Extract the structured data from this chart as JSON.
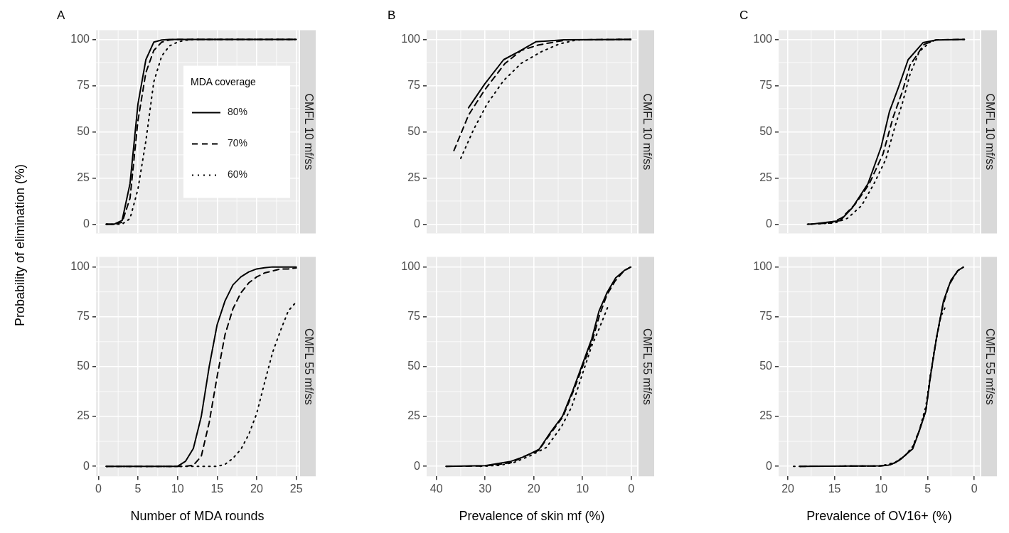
{
  "chart_data": [
    {
      "type": "line",
      "title": "A",
      "subtitle": "CMFL 10 mf/ss",
      "ylabel": "Probability of elimination (%)",
      "legend": "right",
      "legend_title": "MDA coverage",
      "grid": true,
      "tick_labels": "y",
      "xlim": [
        -0.3,
        25.3
      ],
      "xticks": [
        0,
        5,
        10,
        15,
        20,
        25
      ],
      "ylim": [
        -5,
        105
      ],
      "yticks": [
        0,
        25,
        50,
        75,
        100
      ],
      "series": [
        {
          "name": "80%",
          "color": "#000000",
          "line_style": "solid",
          "x": [
            1,
            2,
            3,
            4,
            5,
            6,
            7,
            8,
            9,
            10,
            11,
            12,
            13,
            14,
            15,
            16,
            17,
            18,
            19,
            20,
            21,
            22,
            23,
            24,
            25
          ],
          "values": [
            0,
            0,
            2,
            22,
            65,
            89,
            98.5,
            99.7,
            100,
            100,
            100,
            100,
            100,
            100,
            100,
            100,
            100,
            100,
            100,
            100,
            100,
            100,
            100,
            100,
            100
          ]
        },
        {
          "name": "70%",
          "color": "#000000",
          "line_style": "dashed",
          "x": [
            1,
            2,
            3,
            4,
            5,
            6,
            7,
            8,
            9,
            10,
            11,
            12,
            13,
            14,
            15,
            16,
            17,
            18,
            19,
            20,
            21,
            22,
            23,
            24,
            25
          ],
          "values": [
            0,
            0,
            1,
            14,
            56,
            82,
            94,
            98.5,
            99.7,
            100,
            100,
            100,
            100,
            100,
            100,
            100,
            100,
            100,
            100,
            100,
            100,
            100,
            100,
            100,
            100
          ]
        },
        {
          "name": "60%",
          "color": "#000000",
          "line_style": "dotted",
          "x": [
            1,
            2,
            3,
            4,
            5,
            6,
            7,
            8,
            9,
            10,
            11,
            12,
            13,
            14,
            15,
            16,
            17,
            18,
            19,
            20,
            21,
            22,
            23,
            24,
            25
          ],
          "values": [
            0,
            0,
            0,
            3,
            19,
            45,
            77,
            91,
            96.5,
            98.5,
            99.5,
            100,
            100,
            100,
            100,
            100,
            100,
            100,
            100,
            100,
            100,
            100,
            100,
            100,
            100
          ]
        }
      ]
    },
    {
      "type": "line",
      "title": "B",
      "subtitle": "CMFL 10 mf/ss",
      "grid": true,
      "tick_labels": "y",
      "xlim": [
        42,
        -1.2
      ],
      "xticks": [
        40,
        30,
        20,
        10,
        0
      ],
      "ylim": [
        -5,
        105
      ],
      "yticks": [
        0,
        25,
        50,
        75,
        100
      ],
      "series": [
        {
          "color": "#000000",
          "line_style": "solid",
          "x": [
            33.4,
            30.1,
            26.2,
            23.1,
            19.6,
            13.8,
            0.1
          ],
          "values": [
            63,
            75.8,
            89,
            93.4,
            98.7,
            99.8,
            100
          ]
        },
        {
          "color": "#000000",
          "line_style": "dashed",
          "x": [
            36.4,
            33.4,
            30.1,
            25.9,
            22.6,
            19,
            13.3,
            0.1
          ],
          "values": [
            39.8,
            59,
            72.6,
            87,
            94,
            97,
            99.7,
            100
          ]
        },
        {
          "color": "#000000",
          "line_style": "dotted",
          "x": [
            35,
            32.4,
            29.6,
            26.2,
            22.6,
            18.4,
            14.8,
            11.2,
            0.1
          ],
          "values": [
            35.6,
            51,
            65,
            77.7,
            87,
            93.4,
            97.5,
            99.7,
            100
          ]
        }
      ]
    },
    {
      "type": "line",
      "title": "C",
      "subtitle": "CMFL 10 mf/ss",
      "grid": true,
      "tick_labels": "y",
      "xlim": [
        21,
        -0.6
      ],
      "xticks": [
        20,
        15,
        10,
        5,
        0
      ],
      "ylim": [
        -5,
        105
      ],
      "yticks": [
        0,
        25,
        50,
        75,
        100
      ],
      "series": [
        {
          "color": "#000000",
          "line_style": "solid",
          "x": [
            17.5,
            14.4,
            13.1,
            11.4,
            10,
            9.1,
            8.1,
            7.1,
            5.5,
            4.1,
            1.06
          ],
          "values": [
            0,
            1.9,
            8.8,
            22,
            41.7,
            61,
            74.5,
            89,
            98.2,
            99.7,
            100
          ]
        },
        {
          "color": "#000000",
          "line_style": "dashed",
          "x": [
            17.8,
            15.4,
            14.2,
            12.8,
            11.3,
            9.8,
            8.7,
            7.7,
            6.9,
            5.4,
            4.1,
            1.06
          ],
          "values": [
            0,
            0.6,
            3.5,
            10.7,
            21.5,
            37.9,
            58,
            72,
            86,
            97.2,
            99.7,
            100
          ]
        },
        {
          "color": "#000000",
          "line_style": "dotted",
          "x": [
            17.9,
            15,
            13.6,
            12.1,
            10.8,
            9.5,
            8.5,
            7.7,
            6.9,
            5.9,
            4.6
          ],
          "values": [
            0,
            0.6,
            3.2,
            10,
            21.5,
            35,
            53,
            65.7,
            81,
            93.4,
            99.1
          ]
        }
      ]
    },
    {
      "type": "line",
      "subtitle": "CMFL 55 mf/ss",
      "xlabel": "Number of MDA rounds",
      "grid": true,
      "xlim": [
        -0.3,
        25.3
      ],
      "xticks": [
        0,
        5,
        10,
        15,
        20,
        25
      ],
      "ylim": [
        -5,
        105
      ],
      "yticks": [
        0,
        25,
        50,
        75,
        100
      ],
      "series": [
        {
          "color": "#000000",
          "line_style": "solid",
          "x": [
            1,
            2,
            3,
            4,
            5,
            6,
            7,
            8,
            9,
            10,
            11,
            12,
            13,
            14,
            15,
            16,
            17,
            18,
            19,
            20,
            21,
            22,
            23,
            24,
            25
          ],
          "values": [
            0,
            0,
            0,
            0,
            0,
            0,
            0,
            0,
            0,
            0,
            2.5,
            9,
            25,
            50,
            71,
            83,
            91,
            95,
            97.5,
            99,
            99.6,
            100,
            100,
            100,
            100
          ]
        },
        {
          "color": "#000000",
          "line_style": "dashed",
          "x": [
            1,
            2,
            3,
            4,
            5,
            6,
            7,
            8,
            9,
            10,
            11,
            12,
            13,
            14,
            15,
            16,
            17,
            18,
            19,
            20,
            21,
            22,
            23,
            24,
            25
          ],
          "values": [
            0,
            0,
            0,
            0,
            0,
            0,
            0,
            0,
            0,
            0,
            0,
            0.5,
            5,
            22,
            45,
            66,
            79,
            87,
            92,
            95,
            97,
            98,
            99,
            99,
            99.5
          ]
        },
        {
          "color": "#000000",
          "line_style": "dotted",
          "x": [
            1,
            2,
            3,
            4,
            5,
            6,
            7,
            8,
            9,
            10,
            11,
            12,
            13,
            14,
            15,
            16,
            17,
            18,
            19,
            20,
            21,
            22,
            23,
            24,
            25
          ],
          "values": [
            0,
            0,
            0,
            0,
            0,
            0,
            0,
            0,
            0,
            0,
            0,
            0,
            0,
            0,
            0,
            1,
            4,
            8.5,
            16,
            26.5,
            42,
            57,
            68,
            78,
            82.5
          ]
        }
      ]
    },
    {
      "type": "line",
      "subtitle": "CMFL 55 mf/ss",
      "xlabel": "Prevalence of skin mf (%)",
      "grid": true,
      "xlim": [
        42,
        -1.2
      ],
      "xticks": [
        40,
        30,
        20,
        10,
        0
      ],
      "ylim": [
        -5,
        105
      ],
      "yticks": [
        0,
        25,
        50,
        75,
        100
      ],
      "series": [
        {
          "color": "#000000",
          "line_style": "solid",
          "x": [
            38,
            30,
            24.7,
            21.8,
            18.9,
            16.4,
            14.1,
            12,
            9.9,
            8.1,
            6.6,
            5,
            3.2,
            1.4,
            0.1
          ],
          "values": [
            0,
            0.3,
            2.5,
            5,
            8.6,
            17.7,
            25.2,
            38,
            52,
            64,
            78,
            87,
            94.5,
            98.3,
            99.9
          ]
        },
        {
          "color": "#000000",
          "line_style": "dashed",
          "x": [
            38,
            30,
            27,
            24.5,
            22,
            19,
            16.4,
            14,
            12,
            10,
            8,
            6.5,
            5,
            3.3,
            1.5,
            0.2
          ],
          "values": [
            0,
            0.2,
            1,
            2,
            5,
            8,
            17,
            25,
            37,
            50,
            63,
            76,
            86,
            93,
            98,
            99.9
          ]
        },
        {
          "color": "#000000",
          "line_style": "dotted",
          "x": [
            31,
            27,
            24,
            21,
            17.4,
            14.3,
            12.2,
            10.2,
            8.1,
            6.6,
            4.8
          ],
          "values": [
            0,
            0.5,
            2,
            5,
            9.5,
            20,
            30,
            45,
            60.5,
            69,
            80
          ]
        }
      ]
    },
    {
      "type": "line",
      "subtitle": "CMFL 55 mf/ss",
      "xlabel": "Prevalence of OV16+ (%)",
      "grid": true,
      "xlim": [
        21,
        -0.6
      ],
      "xticks": [
        20,
        15,
        10,
        5,
        0
      ],
      "ylim": [
        -5,
        105
      ],
      "yticks": [
        0,
        25,
        50,
        75,
        100
      ],
      "series": [
        {
          "color": "#000000",
          "line_style": "solid",
          "x": [
            18.7,
            10,
            9.2,
            8.45,
            7.7,
            6.6,
            5.9,
            5.2,
            4.7,
            4.06,
            3.3,
            2.5,
            1.73,
            1.16
          ],
          "values": [
            0,
            0.2,
            0.6,
            1.9,
            4.4,
            8.8,
            17.7,
            27.7,
            45.4,
            64.3,
            83,
            93.3,
            98.3,
            99.9
          ]
        },
        {
          "color": "#000000",
          "line_style": "dashed",
          "x": [
            18.7,
            10,
            9,
            8.2,
            7.5,
            6.6,
            5.9,
            5.2,
            4.7,
            4.1,
            3.4,
            2.7,
            1.8,
            1.2
          ],
          "values": [
            0,
            0.2,
            0.8,
            2.5,
            5,
            9.5,
            18,
            28,
            45,
            63,
            80,
            91,
            98,
            99.8
          ]
        },
        {
          "color": "#000000",
          "line_style": "dotted",
          "x": [
            19.4,
            10,
            8.5,
            7.5,
            6.6,
            5.9,
            5.2,
            4.7,
            4.3,
            3.9,
            3.6,
            3.1
          ],
          "values": [
            0,
            0.2,
            2,
            5,
            10,
            18,
            30,
            46,
            58,
            68,
            75,
            80
          ]
        }
      ]
    }
  ]
}
